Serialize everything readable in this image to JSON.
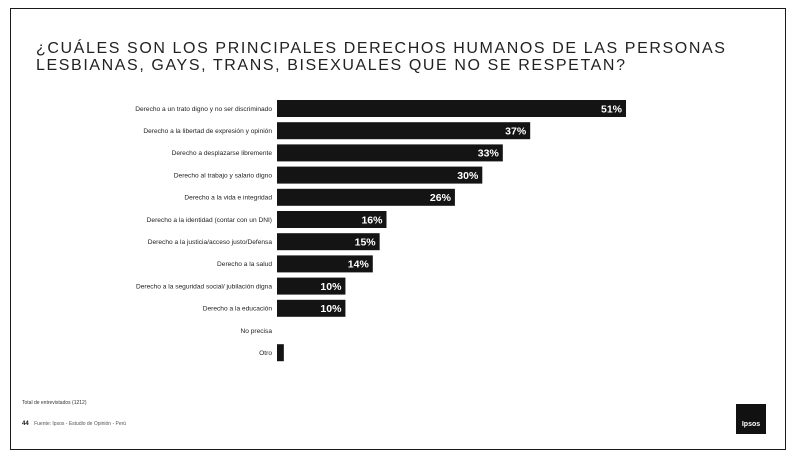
{
  "title_lines": [
    "¿CUÁLES SON LOS PRINCIPALES DERECHOS HUMANOS DE LAS PERSONAS",
    "LESBIANAS, GAYS, TRANS, BISEXUALES QUE NO SE RESPETAN?"
  ],
  "bar_color": "#141414",
  "chart_data": {
    "type": "bar",
    "orientation": "horizontal",
    "categories": [
      "Derecho a un trato digno y no ser discriminado",
      "Derecho a la libertad de expresión y opinión",
      "Derecho a desplazarse libremente",
      "Derecho al trabajo y salario digno",
      "Derecho a la vida e integridad",
      "Derecho a la identidad (contar con un DNI)",
      "Derecho a la justicia/acceso justo/Defensa",
      "Derecho a la salud",
      "Derecho a la seguridad social/ jubilación digna",
      "Derecho a la educación",
      "No precisa",
      "Otro"
    ],
    "values": [
      51,
      37,
      33,
      30,
      26,
      16,
      15,
      14,
      10,
      10,
      0,
      1
    ],
    "data_labels": [
      "51%",
      "37%",
      "33%",
      "30%",
      "26%",
      "16%",
      "15%",
      "14%",
      "10%",
      "10%",
      "",
      ""
    ],
    "xlim": [
      0,
      51
    ],
    "grid": false,
    "legend": "none",
    "title": "¿CUÁLES SON LOS PRINCIPALES DERECHOS HUMANOS DE LAS PERSONAS LESBIANAS, GAYS, TRANS, BISEXUALES QUE NO SE RESPETAN?"
  },
  "footer": {
    "base_note": "Total de entrevistados (1212)",
    "page_number": "44",
    "source_note": "Fuente: Ipsos - Estudio de Opinión - Perú"
  },
  "logo_text": "Ipsos"
}
